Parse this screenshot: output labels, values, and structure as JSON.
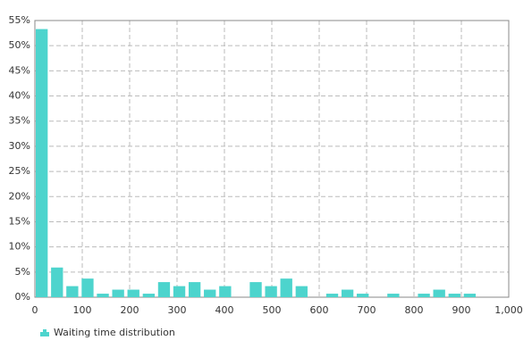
{
  "chart_data": {
    "type": "histogram",
    "series": [
      {
        "name": "Waiting time distribution",
        "color": "#4dd4cd",
        "values": [
          53.3,
          5.9,
          2.2,
          3.7,
          0.7,
          1.5,
          1.5,
          0.7,
          3.0,
          2.2,
          3.0,
          1.5,
          2.2,
          0,
          3.0,
          2.2,
          3.7,
          2.2,
          0,
          0.7,
          1.5,
          0.7,
          0,
          0.7,
          0,
          0.7,
          1.5,
          0.7,
          0.7
        ]
      }
    ],
    "bins": [
      0,
      32.3,
      64.5,
      96.8,
      129,
      161.3,
      193.5,
      225.8,
      258.1,
      290.3,
      322.6,
      354.8,
      387.1,
      419.4,
      451.6,
      483.9,
      516.1,
      548.4,
      580.6,
      612.9,
      645.2,
      677.4,
      709.7,
      741.9,
      774.2,
      806.5,
      838.7,
      871,
      903.2,
      935.5
    ],
    "xlim": [
      0,
      1000
    ],
    "xticks": [
      0,
      100,
      200,
      300,
      400,
      500,
      600,
      700,
      800,
      900,
      {
        "value": 1000,
        "label": "1,000"
      }
    ],
    "ylim": [
      0,
      55
    ],
    "yticks": [
      {
        "value": 0,
        "label": "0%"
      },
      {
        "value": 5,
        "label": "5%"
      },
      {
        "value": 10,
        "label": "10%"
      },
      {
        "value": 15,
        "label": "15%"
      },
      {
        "value": 20,
        "label": "20%"
      },
      {
        "value": 25,
        "label": "25%"
      },
      {
        "value": 30,
        "label": "30%"
      },
      {
        "value": 35,
        "label": "35%"
      },
      {
        "value": 40,
        "label": "40%"
      },
      {
        "value": 45,
        "label": "45%"
      },
      {
        "value": 50,
        "label": "50%"
      },
      {
        "value": 55,
        "label": "55%"
      }
    ],
    "grid": true,
    "legend": "bottom-left"
  }
}
